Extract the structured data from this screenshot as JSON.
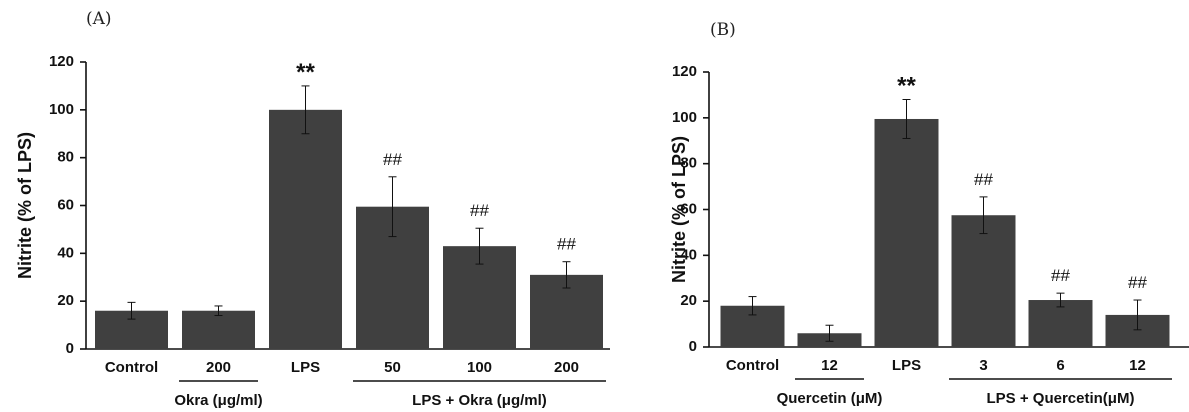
{
  "chart_data": [
    {
      "type": "bar",
      "panel": "(A)",
      "ylabel": "Nitrite (% of LPS)",
      "ylim": [
        0,
        120
      ],
      "yticks": [
        0,
        20,
        40,
        60,
        80,
        100,
        120
      ],
      "categories": [
        "Control",
        "200",
        "LPS",
        "50",
        "100",
        "200"
      ],
      "values": [
        16,
        16,
        100,
        59.5,
        43,
        31
      ],
      "errors": [
        3.5,
        2,
        10,
        12.5,
        7.5,
        5.5
      ],
      "annotations": [
        "",
        "",
        "**",
        "##",
        "##",
        "##"
      ],
      "groups": [
        {
          "label": "Okra (μg/ml)",
          "from": 1,
          "to": 1
        },
        {
          "label": "LPS + Okra (μg/ml)",
          "from": 3,
          "to": 5
        }
      ],
      "bar_color": "#404040"
    },
    {
      "type": "bar",
      "panel": "(B)",
      "ylabel": "Nitrite (% of LPS)",
      "ylim": [
        0,
        120
      ],
      "yticks": [
        0,
        20,
        40,
        60,
        80,
        100,
        120
      ],
      "categories": [
        "Control",
        "12",
        "LPS",
        "3",
        "6",
        "12"
      ],
      "values": [
        18,
        6,
        99.5,
        57.5,
        20.5,
        14
      ],
      "errors": [
        4,
        3.5,
        8.5,
        8,
        3,
        6.5
      ],
      "annotations": [
        "",
        "",
        "**",
        "##",
        "##",
        "##"
      ],
      "groups": [
        {
          "label": "Quercetin (μM)",
          "from": 1,
          "to": 1
        },
        {
          "label": "LPS + Quercetin(μM)",
          "from": 3,
          "to": 5
        }
      ],
      "bar_color": "#404040"
    }
  ]
}
